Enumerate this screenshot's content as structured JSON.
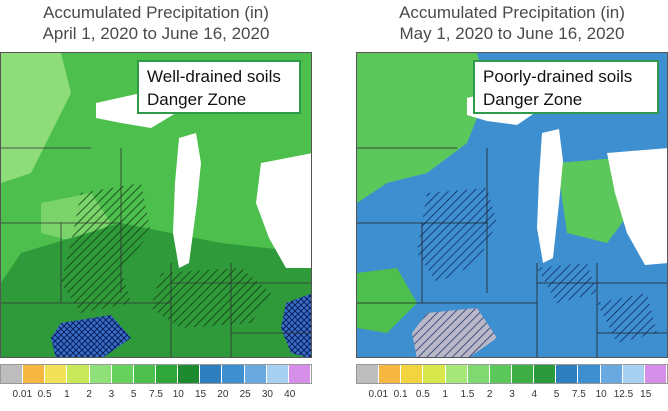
{
  "left_panel": {
    "title_line1": "Accumulated Precipitation (in)",
    "title_line2": "April 1, 2020 to June 16, 2020",
    "callout_line1": "Well-drained soils",
    "callout_line2": "Danger Zone",
    "legend": {
      "labels": [
        "0.01",
        "0.5",
        "1",
        "2",
        "3",
        "5",
        "7.5",
        "10",
        "15",
        "20",
        "25",
        "30",
        "40"
      ],
      "colors": [
        "#bdbdbd",
        "#f5b642",
        "#f2e25a",
        "#c8e85a",
        "#90e07a",
        "#66d15c",
        "#4cbf4c",
        "#2ea63a",
        "#1d8a30",
        "#2f7fbf",
        "#3d8fd0",
        "#6aa8e0",
        "#a8d0f0",
        "#d58fe8"
      ]
    }
  },
  "right_panel": {
    "title_line1": "Accumulated Precipitation (in)",
    "title_line2": "May 1, 2020 to June 16, 2020",
    "callout_line1": "Poorly-drained soils",
    "callout_line2": "Danger Zone",
    "legend": {
      "labels": [
        "0.01",
        "0.1",
        "0.5",
        "1",
        "1.5",
        "2",
        "3",
        "4",
        "5",
        "7.5",
        "10",
        "12.5",
        "15"
      ],
      "colors": [
        "#bdbdbd",
        "#f5b642",
        "#f2d340",
        "#d8e84a",
        "#a8e87a",
        "#80d870",
        "#5cc85c",
        "#3cae44",
        "#2b9a3c",
        "#2f7fbf",
        "#3d8fd0",
        "#6aa8e0",
        "#a8d0f0",
        "#d58fe8"
      ]
    }
  },
  "map_colors": {
    "left_base": "#4cbf4c",
    "left_dark": "#2e9a3a",
    "left_light": "#8fdc7a",
    "right_base": "#2f7fbf",
    "right_mid": "#3d8fd0",
    "right_green": "#5cc85c",
    "lake": "#ffffff",
    "hatch_fill": "#3a6fc8"
  }
}
